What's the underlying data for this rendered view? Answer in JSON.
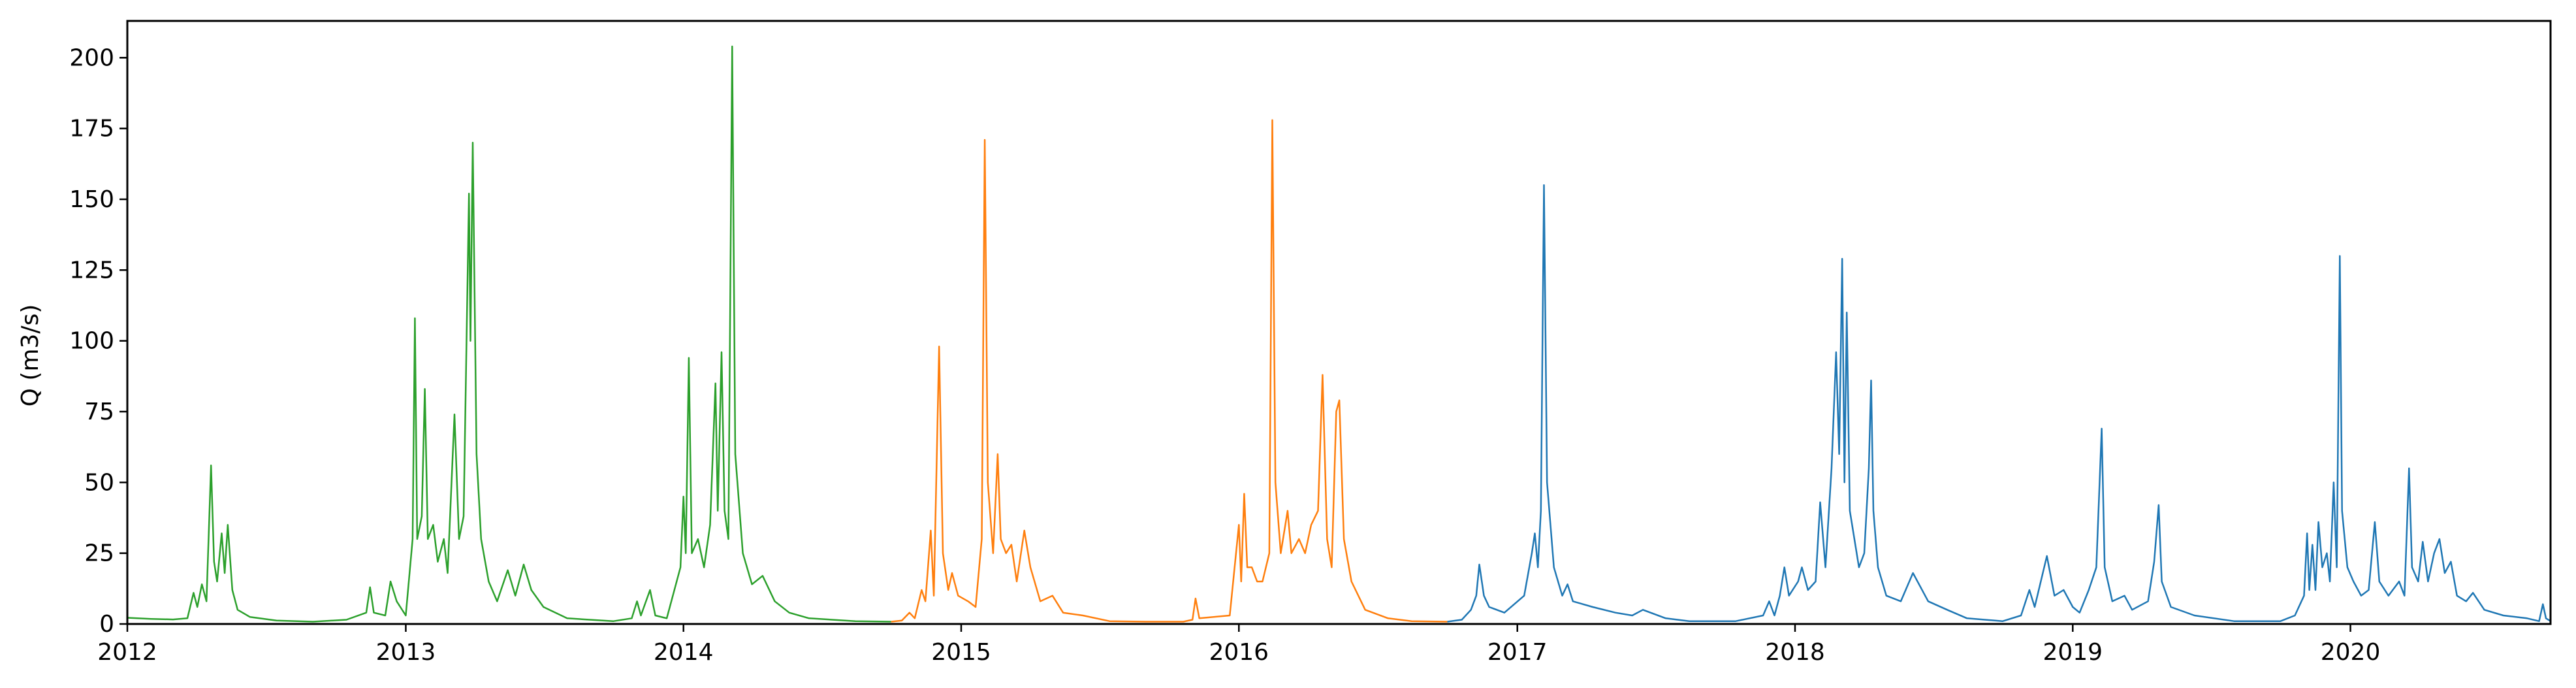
{
  "chart_data": {
    "type": "line",
    "title": "",
    "xlabel": "",
    "ylabel": "Q (m3/s)",
    "grid": false,
    "legend": "none",
    "xlim": [
      "2012-01-01",
      "2020-09-20"
    ],
    "ylim": [
      0,
      213
    ],
    "x_ticks": [
      "2012",
      "2013",
      "2014",
      "2015",
      "2016",
      "2017",
      "2018",
      "2019",
      "2020"
    ],
    "y_ticks": [
      "0",
      "25",
      "50",
      "75",
      "100",
      "125",
      "150",
      "175",
      "200"
    ],
    "series": [
      {
        "color": "#2ca02c",
        "points": [
          [
            "2012-01-01",
            2.2
          ],
          [
            "2012-02-01",
            1.8
          ],
          [
            "2012-03-01",
            1.6
          ],
          [
            "2012-03-20",
            2.0
          ],
          [
            "2012-03-28",
            11.0
          ],
          [
            "2012-04-02",
            6.0
          ],
          [
            "2012-04-08",
            14.0
          ],
          [
            "2012-04-14",
            8.0
          ],
          [
            "2012-04-20",
            56.0
          ],
          [
            "2012-04-24",
            22.0
          ],
          [
            "2012-04-28",
            15.0
          ],
          [
            "2012-05-04",
            32.0
          ],
          [
            "2012-05-08",
            18.0
          ],
          [
            "2012-05-12",
            35.0
          ],
          [
            "2012-05-18",
            12.0
          ],
          [
            "2012-05-25",
            5.0
          ],
          [
            "2012-06-10",
            2.5
          ],
          [
            "2012-07-15",
            1.2
          ],
          [
            "2012-09-01",
            0.8
          ],
          [
            "2012-10-15",
            1.5
          ],
          [
            "2012-11-10",
            4.0
          ],
          [
            "2012-11-15",
            13.0
          ],
          [
            "2012-11-20",
            4.0
          ],
          [
            "2012-12-05",
            3.0
          ],
          [
            "2012-12-12",
            15.0
          ],
          [
            "2012-12-20",
            8.0
          ],
          [
            "2013-01-01",
            3.0
          ],
          [
            "2013-01-10",
            30.0
          ],
          [
            "2013-01-13",
            108.0
          ],
          [
            "2013-01-16",
            30.0
          ],
          [
            "2013-01-22",
            38.0
          ],
          [
            "2013-01-26",
            83.0
          ],
          [
            "2013-01-30",
            30.0
          ],
          [
            "2013-02-06",
            35.0
          ],
          [
            "2013-02-12",
            22.0
          ],
          [
            "2013-02-20",
            30.0
          ],
          [
            "2013-02-25",
            18.0
          ],
          [
            "2013-03-06",
            74.0
          ],
          [
            "2013-03-12",
            30.0
          ],
          [
            "2013-03-18",
            38.0
          ],
          [
            "2013-03-25",
            152.0
          ],
          [
            "2013-03-27",
            100.0
          ],
          [
            "2013-03-30",
            170.0
          ],
          [
            "2013-04-04",
            60.0
          ],
          [
            "2013-04-10",
            30.0
          ],
          [
            "2013-04-20",
            15.0
          ],
          [
            "2013-05-01",
            8.0
          ],
          [
            "2013-05-15",
            19.0
          ],
          [
            "2013-05-25",
            10.0
          ],
          [
            "2013-06-05",
            21.0
          ],
          [
            "2013-06-15",
            12.0
          ],
          [
            "2013-07-01",
            6.0
          ],
          [
            "2013-08-01",
            2.0
          ],
          [
            "2013-10-01",
            1.0
          ],
          [
            "2013-10-25",
            2.0
          ],
          [
            "2013-11-01",
            8.0
          ],
          [
            "2013-11-06",
            3.0
          ],
          [
            "2013-11-18",
            12.0
          ],
          [
            "2013-11-25",
            3.0
          ],
          [
            "2013-12-10",
            2.0
          ],
          [
            "2013-12-28",
            20.0
          ],
          [
            "2014-01-01",
            45.0
          ],
          [
            "2014-01-04",
            25.0
          ],
          [
            "2014-01-08",
            94.0
          ],
          [
            "2014-01-12",
            25.0
          ],
          [
            "2014-01-20",
            30.0
          ],
          [
            "2014-01-28",
            20.0
          ],
          [
            "2014-02-05",
            35.0
          ],
          [
            "2014-02-12",
            85.0
          ],
          [
            "2014-02-15",
            40.0
          ],
          [
            "2014-02-20",
            96.0
          ],
          [
            "2014-02-24",
            40.0
          ],
          [
            "2014-03-01",
            30.0
          ],
          [
            "2014-03-06",
            204.0
          ],
          [
            "2014-03-10",
            60.0
          ],
          [
            "2014-03-20",
            25.0
          ],
          [
            "2014-04-01",
            14.0
          ],
          [
            "2014-04-15",
            17.0
          ],
          [
            "2014-05-01",
            8.0
          ],
          [
            "2014-05-20",
            4.0
          ],
          [
            "2014-06-15",
            2.0
          ],
          [
            "2014-08-15",
            1.0
          ],
          [
            "2014-10-01",
            0.8
          ]
        ]
      },
      {
        "color": "#ff7f0e",
        "points": [
          [
            "2014-10-01",
            0.8
          ],
          [
            "2014-10-15",
            1.2
          ],
          [
            "2014-10-25",
            4.0
          ],
          [
            "2014-11-01",
            2.0
          ],
          [
            "2014-11-10",
            12.0
          ],
          [
            "2014-11-15",
            8.0
          ],
          [
            "2014-11-22",
            33.0
          ],
          [
            "2014-11-26",
            10.0
          ],
          [
            "2014-12-03",
            98.0
          ],
          [
            "2014-12-08",
            25.0
          ],
          [
            "2014-12-15",
            12.0
          ],
          [
            "2014-12-20",
            18.0
          ],
          [
            "2014-12-28",
            10.0
          ],
          [
            "2015-01-10",
            8.0
          ],
          [
            "2015-01-20",
            6.0
          ],
          [
            "2015-01-28",
            30.0
          ],
          [
            "2015-02-01",
            171.0
          ],
          [
            "2015-02-05",
            50.0
          ],
          [
            "2015-02-12",
            25.0
          ],
          [
            "2015-02-18",
            60.0
          ],
          [
            "2015-02-22",
            30.0
          ],
          [
            "2015-03-01",
            25.0
          ],
          [
            "2015-03-08",
            28.0
          ],
          [
            "2015-03-15",
            15.0
          ],
          [
            "2015-03-25",
            33.0
          ],
          [
            "2015-04-02",
            20.0
          ],
          [
            "2015-04-15",
            8.0
          ],
          [
            "2015-05-01",
            10.0
          ],
          [
            "2015-05-15",
            4.0
          ],
          [
            "2015-06-10",
            3.0
          ],
          [
            "2015-07-15",
            1.0
          ],
          [
            "2015-09-01",
            0.8
          ],
          [
            "2015-10-20",
            0.8
          ],
          [
            "2015-11-01",
            1.5
          ],
          [
            "2015-11-05",
            9.0
          ],
          [
            "2015-11-10",
            2.0
          ],
          [
            "2015-12-20",
            3.0
          ],
          [
            "2016-01-01",
            35.0
          ],
          [
            "2016-01-04",
            15.0
          ],
          [
            "2016-01-08",
            46.0
          ],
          [
            "2016-01-12",
            20.0
          ],
          [
            "2016-01-18",
            20.0
          ],
          [
            "2016-01-25",
            15.0
          ],
          [
            "2016-02-01",
            15.0
          ],
          [
            "2016-02-10",
            25.0
          ],
          [
            "2016-02-14",
            178.0
          ],
          [
            "2016-02-18",
            50.0
          ],
          [
            "2016-02-25",
            25.0
          ],
          [
            "2016-03-05",
            40.0
          ],
          [
            "2016-03-10",
            25.0
          ],
          [
            "2016-03-20",
            30.0
          ],
          [
            "2016-03-28",
            25.0
          ],
          [
            "2016-04-05",
            35.0
          ],
          [
            "2016-04-14",
            40.0
          ],
          [
            "2016-04-20",
            88.0
          ],
          [
            "2016-04-26",
            30.0
          ],
          [
            "2016-05-02",
            20.0
          ],
          [
            "2016-05-08",
            75.0
          ],
          [
            "2016-05-12",
            79.0
          ],
          [
            "2016-05-18",
            30.0
          ],
          [
            "2016-05-28",
            15.0
          ],
          [
            "2016-06-15",
            5.0
          ],
          [
            "2016-07-15",
            2.0
          ],
          [
            "2016-08-15",
            1.0
          ],
          [
            "2016-10-01",
            0.8
          ]
        ]
      },
      {
        "color": "#1f77b4",
        "points": [
          [
            "2016-10-01",
            0.8
          ],
          [
            "2016-10-20",
            1.5
          ],
          [
            "2016-11-01",
            5.0
          ],
          [
            "2016-11-08",
            10.0
          ],
          [
            "2016-11-12",
            21.0
          ],
          [
            "2016-11-18",
            10.0
          ],
          [
            "2016-11-25",
            6.0
          ],
          [
            "2016-12-15",
            4.0
          ],
          [
            "2017-01-10",
            10.0
          ],
          [
            "2017-01-20",
            25.0
          ],
          [
            "2017-01-24",
            32.0
          ],
          [
            "2017-01-28",
            20.0
          ],
          [
            "2017-02-01",
            40.0
          ],
          [
            "2017-02-05",
            155.0
          ],
          [
            "2017-02-09",
            50.0
          ],
          [
            "2017-02-18",
            20.0
          ],
          [
            "2017-03-01",
            10.0
          ],
          [
            "2017-03-08",
            14.0
          ],
          [
            "2017-03-15",
            8.0
          ],
          [
            "2017-04-10",
            6.0
          ],
          [
            "2017-05-10",
            4.0
          ],
          [
            "2017-06-01",
            3.0
          ],
          [
            "2017-06-15",
            5.0
          ],
          [
            "2017-07-15",
            2.0
          ],
          [
            "2017-08-15",
            1.0
          ],
          [
            "2017-10-15",
            1.0
          ],
          [
            "2017-11-20",
            3.0
          ],
          [
            "2017-11-28",
            8.0
          ],
          [
            "2017-12-05",
            3.0
          ],
          [
            "2017-12-12",
            10.0
          ],
          [
            "2017-12-18",
            20.0
          ],
          [
            "2017-12-24",
            10.0
          ],
          [
            "2018-01-05",
            15.0
          ],
          [
            "2018-01-10",
            20.0
          ],
          [
            "2018-01-18",
            12.0
          ],
          [
            "2018-01-28",
            15.0
          ],
          [
            "2018-02-03",
            43.0
          ],
          [
            "2018-02-10",
            20.0
          ],
          [
            "2018-02-18",
            55.0
          ],
          [
            "2018-02-24",
            96.0
          ],
          [
            "2018-02-28",
            60.0
          ],
          [
            "2018-03-04",
            129.0
          ],
          [
            "2018-03-07",
            50.0
          ],
          [
            "2018-03-10",
            110.0
          ],
          [
            "2018-03-14",
            40.0
          ],
          [
            "2018-03-20",
            30.0
          ],
          [
            "2018-03-26",
            20.0
          ],
          [
            "2018-04-02",
            25.0
          ],
          [
            "2018-04-08",
            55.0
          ],
          [
            "2018-04-11",
            86.0
          ],
          [
            "2018-04-14",
            40.0
          ],
          [
            "2018-04-20",
            20.0
          ],
          [
            "2018-05-01",
            10.0
          ],
          [
            "2018-05-20",
            8.0
          ],
          [
            "2018-06-05",
            18.0
          ],
          [
            "2018-06-25",
            8.0
          ],
          [
            "2018-07-20",
            5.0
          ],
          [
            "2018-08-15",
            2.0
          ],
          [
            "2018-10-01",
            1.0
          ],
          [
            "2018-10-25",
            3.0
          ],
          [
            "2018-11-05",
            12.0
          ],
          [
            "2018-11-12",
            6.0
          ],
          [
            "2018-11-28",
            24.0
          ],
          [
            "2018-12-08",
            10.0
          ],
          [
            "2018-12-20",
            12.0
          ],
          [
            "2019-01-01",
            6.0
          ],
          [
            "2019-01-10",
            4.0
          ],
          [
            "2019-01-22",
            12.0
          ],
          [
            "2019-02-01",
            20.0
          ],
          [
            "2019-02-08",
            69.0
          ],
          [
            "2019-02-12",
            20.0
          ],
          [
            "2019-02-22",
            8.0
          ],
          [
            "2019-03-10",
            10.0
          ],
          [
            "2019-03-20",
            5.0
          ],
          [
            "2019-04-10",
            8.0
          ],
          [
            "2019-04-18",
            22.0
          ],
          [
            "2019-04-24",
            42.0
          ],
          [
            "2019-04-28",
            15.0
          ],
          [
            "2019-05-10",
            6.0
          ],
          [
            "2019-06-10",
            3.0
          ],
          [
            "2019-08-01",
            1.0
          ],
          [
            "2019-10-01",
            1.0
          ],
          [
            "2019-10-20",
            3.0
          ],
          [
            "2019-11-01",
            10.0
          ],
          [
            "2019-11-05",
            32.0
          ],
          [
            "2019-11-08",
            12.0
          ],
          [
            "2019-11-12",
            28.0
          ],
          [
            "2019-11-16",
            12.0
          ],
          [
            "2019-11-20",
            36.0
          ],
          [
            "2019-11-25",
            20.0
          ],
          [
            "2019-12-01",
            25.0
          ],
          [
            "2019-12-05",
            15.0
          ],
          [
            "2019-12-10",
            50.0
          ],
          [
            "2019-12-14",
            20.0
          ],
          [
            "2019-12-18",
            130.0
          ],
          [
            "2019-12-21",
            40.0
          ],
          [
            "2019-12-28",
            20.0
          ],
          [
            "2020-01-05",
            15.0
          ],
          [
            "2020-01-15",
            10.0
          ],
          [
            "2020-01-25",
            12.0
          ],
          [
            "2020-02-02",
            36.0
          ],
          [
            "2020-02-08",
            15.0
          ],
          [
            "2020-02-20",
            10.0
          ],
          [
            "2020-03-05",
            15.0
          ],
          [
            "2020-03-12",
            10.0
          ],
          [
            "2020-03-18",
            55.0
          ],
          [
            "2020-03-22",
            20.0
          ],
          [
            "2020-03-30",
            15.0
          ],
          [
            "2020-04-05",
            29.0
          ],
          [
            "2020-04-12",
            15.0
          ],
          [
            "2020-04-20",
            25.0
          ],
          [
            "2020-04-27",
            30.0
          ],
          [
            "2020-05-04",
            18.0
          ],
          [
            "2020-05-12",
            22.0
          ],
          [
            "2020-05-20",
            10.0
          ],
          [
            "2020-06-01",
            8.0
          ],
          [
            "2020-06-10",
            11.0
          ],
          [
            "2020-06-25",
            5.0
          ],
          [
            "2020-07-20",
            3.0
          ],
          [
            "2020-08-20",
            2.0
          ],
          [
            "2020-09-05",
            1.0
          ],
          [
            "2020-09-10",
            7.0
          ],
          [
            "2020-09-14",
            2.0
          ],
          [
            "2020-09-20",
            1.0
          ]
        ]
      }
    ]
  }
}
